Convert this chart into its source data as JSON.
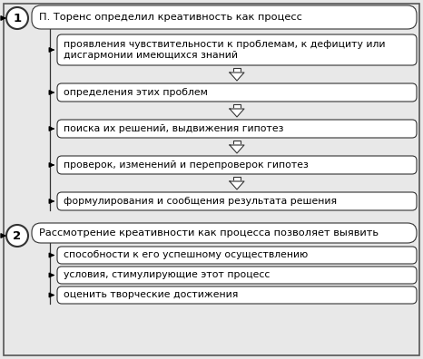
{
  "bg_color": "#e8e8e8",
  "box_bg": "#ffffff",
  "box_edge": "#333333",
  "text_color": "#000000",
  "section1_header": "П. Торенс определил креативность как процесс",
  "section1_items": [
    "проявления чувствительности к проблемам, к дефициту или\nдисгармонии имеющихся знаний",
    "определения этих проблем",
    "поиска их решений, выдвижения гипотез",
    "проверок, изменений и перепроверок гипотез",
    "формулирования и сообщения результата решения"
  ],
  "section2_header": "Рассмотрение креативности как процесса позволяет выявить",
  "section2_items": [
    "способности к его успешному осуществлению",
    "условия, стимулирующие этот процесс",
    "оценить творческие достижения"
  ],
  "font_size_header": 8.2,
  "font_size_item": 7.8,
  "font_size_number": 9.5,
  "fig_w": 4.66,
  "fig_h": 3.96,
  "dpi": 100
}
